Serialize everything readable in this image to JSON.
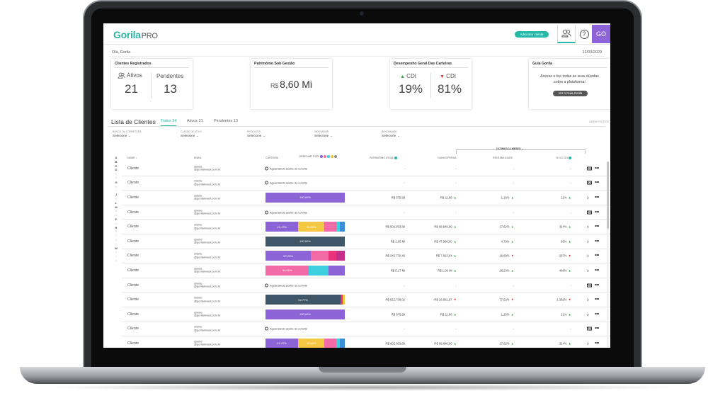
{
  "brand": {
    "logo": "Gorila",
    "logo_suffix": "PRO"
  },
  "header": {
    "add_client_label": "Adicionar cliente",
    "help_icon": "?",
    "user_initials": "GO",
    "accent": "#23b8a8",
    "user_color": "#8c64d8"
  },
  "greeting": "Olá, Gorila",
  "date": "12/03/2020",
  "cards": {
    "clients": {
      "title": "Clientes Registrados",
      "ativos_label": "Ativos",
      "ativos_value": "21",
      "pendentes_label": "Pendentes",
      "pendentes_value": "13"
    },
    "patrimonio": {
      "title": "Patrimônio Sob Gestão",
      "currency": "R$",
      "amount": "8,60 Mi"
    },
    "desempenho": {
      "title": "Desempenho Geral Das Carteiras",
      "up_label": "CDI",
      "up_value": "19%",
      "down_label": "CDI",
      "down_value": "81%",
      "up_arrow": "▲",
      "down_arrow": "▼"
    },
    "guia": {
      "title": "Guia Gorila",
      "text": "Acesse e tire todas as suas dúvidas sobre a plataforma!",
      "button": "Ver o Guia Gorila"
    }
  },
  "list": {
    "title": "Lista de Clientes",
    "tabs": {
      "todos_label": "Todos",
      "todos_count": "34",
      "ativos_label": "Ativos",
      "ativos_count": "21",
      "pendentes_label": "Pendentes",
      "pendentes_count": "13"
    },
    "clear_filters": "LIMPAR FILTROS"
  },
  "filters": [
    {
      "label": "BANCO OU CORRETORA",
      "value": "Selecione"
    },
    {
      "label": "CLASSE DE ATIVO",
      "value": "Selecione"
    },
    {
      "label": "PRODUTOS",
      "value": "Selecione"
    },
    {
      "label": "INDEXADOR",
      "value": "Selecione"
    },
    {
      "label": "BENCHMARK",
      "value": "Selecione"
    }
  ],
  "table": {
    "period": "ÚLTIMOS 12 MESES",
    "headers": {
      "nome": "NOME",
      "email": "EMAIL",
      "carteira": "CARTEIRA",
      "ordenar": "ORDENAR POR:",
      "patrimonio": "PATRIMÔNIO ATUAL",
      "ganho": "GANHO/PERDA",
      "rentabilidade": "RENTABILIDADE",
      "cdi": "% DO CDI"
    },
    "sort_dots": [
      "#8c64d8",
      "#f26ba6",
      "#3fd0e0",
      "#f5c842",
      "#8d8d8d"
    ]
  },
  "alphabet": [
    {
      "l": "A",
      "on": true
    },
    {
      "l": "B",
      "on": true
    },
    {
      "l": "C",
      "on": true
    },
    {
      "l": "D",
      "on": true
    },
    {
      "l": "E",
      "on": false
    },
    {
      "l": "F",
      "on": false
    },
    {
      "l": "G",
      "on": true
    },
    {
      "l": "H",
      "on": false
    },
    {
      "l": "I",
      "on": false
    },
    {
      "l": "J",
      "on": true
    },
    {
      "l": "K",
      "on": false
    },
    {
      "l": "L",
      "on": true
    },
    {
      "l": "M",
      "on": true
    },
    {
      "l": "N",
      "on": false
    },
    {
      "l": "O",
      "on": false
    },
    {
      "l": "P",
      "on": true
    },
    {
      "l": "Q",
      "on": false
    },
    {
      "l": "R",
      "on": true
    },
    {
      "l": "S",
      "on": false
    },
    {
      "l": "T",
      "on": false
    },
    {
      "l": "U",
      "on": false
    },
    {
      "l": "V",
      "on": false
    },
    {
      "l": "W",
      "on": true
    },
    {
      "l": "X",
      "on": false
    },
    {
      "l": "Y",
      "on": false
    },
    {
      "l": "Z",
      "on": false
    }
  ],
  "pending_label": "Aguardando aceite do convite",
  "rows": [
    {
      "name": "Cliente",
      "email1": "cliente",
      "email2": "@gorilainvest.com.br",
      "pending": true,
      "patrimonio": "-",
      "ganho": "-",
      "ganho_dir": "",
      "rent": "-",
      "rent_dir": "",
      "cdi": "-",
      "cdi_dir": "",
      "action": "mail"
    },
    {
      "name": "Cliente",
      "email1": "cliente",
      "email2": "@gorilainvest.com.br",
      "pending": true,
      "patrimonio": "-",
      "ganho": "-",
      "ganho_dir": "",
      "rent": "-",
      "rent_dir": "",
      "cdi": "-",
      "cdi_dir": "",
      "action": "mail"
    },
    {
      "name": "Cliente",
      "email1": "cliente",
      "email2": "@gorilainvest.com.br",
      "pending": false,
      "segments": [
        {
          "pct": 100,
          "color": "#8c64d8",
          "label": "100,00%"
        }
      ],
      "patrimonio": "R$ 975,99",
      "ganho": "R$ 11,68",
      "ganho_dir": "up",
      "rent": "1,16%",
      "rent_dir": "up",
      "cdi": "21%",
      "cdi_dir": "up",
      "action": "chevron"
    },
    {
      "name": "Cliente",
      "email1": "cliente",
      "email2": "@gorilainvest.com.br",
      "pending": true,
      "patrimonio": "-",
      "ganho": "-",
      "ganho_dir": "",
      "rent": "-",
      "rent_dir": "",
      "cdi": "-",
      "cdi_dir": "",
      "action": "mail"
    },
    {
      "name": "Cliente",
      "email1": "cliente",
      "email2": "@gorilainvest.com.br",
      "pending": false,
      "segments": [
        {
          "pct": 41.47,
          "color": "#8c64d8",
          "label": "41,47%"
        },
        {
          "pct": 32.63,
          "color": "#f5c842",
          "label": "32,63%"
        },
        {
          "pct": 15,
          "color": "#f26ba6",
          "label": ""
        },
        {
          "pct": 5,
          "color": "#3fd0e0",
          "label": ""
        },
        {
          "pct": 5.9,
          "color": "#3a8fd6",
          "label": ""
        }
      ],
      "patrimonio": "R$ 602.053,89",
      "ganho": "R$ 68.646,00",
      "ganho_dir": "up",
      "rent": "17,62%",
      "rent_dir": "up",
      "cdi": "314%",
      "cdi_dir": "up",
      "action": "chevron"
    },
    {
      "name": "Cliente",
      "email1": "cliente",
      "email2": "@gorilainvest.com.br",
      "pending": false,
      "segments": [
        {
          "pct": 100,
          "color": "#3e5668",
          "label": "100,00%"
        }
      ],
      "patrimonio": "R$ 1,05 Mi",
      "ganho": "R$ 47.900,00",
      "ganho_dir": "up",
      "rent": "4,79%",
      "rent_dir": "up",
      "cdi": "85%",
      "cdi_dir": "up",
      "action": "chevron"
    },
    {
      "name": "Cliente",
      "email1": "cliente",
      "email2": "@gorilainvest.com.br",
      "pending": false,
      "segments": [
        {
          "pct": 57.29,
          "color": "#8c64d8",
          "label": "57,29%"
        },
        {
          "pct": 22,
          "color": "#f26ba6",
          "label": ""
        },
        {
          "pct": 10,
          "color": "#e8327b",
          "label": ""
        },
        {
          "pct": 10.71,
          "color": "#c42f8a",
          "label": ""
        }
      ],
      "patrimonio": "R$ 245.779,46",
      "ganho": "R$ 7.813,04",
      "ganho_dir": "up",
      "rent": "-16,69%",
      "rent_dir": "down",
      "cdi": "-297%",
      "cdi_dir": "down",
      "action": "chevron"
    },
    {
      "name": "Cliente",
      "email1": "cliente",
      "email2": "@gorilainvest.com.br",
      "pending": false,
      "segments": [
        {
          "pct": 54.65,
          "color": "#f26ba6",
          "label": "54,65%"
        },
        {
          "pct": 25,
          "color": "#3fd0e0",
          "label": ""
        },
        {
          "pct": 20.35,
          "color": "#8c64d8",
          "label": ""
        }
      ],
      "patrimonio": "R$ 5,17 Mi",
      "ganho": "R$ 1,03 Mi",
      "ganho_dir": "up",
      "rent": "26,23%",
      "rent_dir": "up",
      "cdi": "468%",
      "cdi_dir": "up",
      "action": "chevron"
    },
    {
      "name": "Cliente",
      "email1": "cliente",
      "email2": "@gorilainvest.com.br",
      "pending": true,
      "patrimonio": "-",
      "ganho": "-",
      "ganho_dir": "",
      "rent": "-",
      "rent_dir": "",
      "cdi": "-",
      "cdi_dir": "",
      "action": "mail"
    },
    {
      "name": "Cliente",
      "email1": "cliente",
      "email2": "@gorilainvest.com.br",
      "pending": false,
      "segments": [
        {
          "pct": 94.77,
          "color": "#3e5668",
          "label": "94,77%"
        },
        {
          "pct": 2.5,
          "color": "#e8327b",
          "label": ""
        },
        {
          "pct": 2.73,
          "color": "#f5c842",
          "label": ""
        }
      ],
      "patrimonio": "R$ 612.738,02",
      "ganho": "-R$ 18.891,97",
      "ganho_dir": "down",
      "rent": "-77,52%",
      "rent_dir": "down",
      "cdi": "-1.382%",
      "cdi_dir": "down",
      "action": "chevron"
    },
    {
      "name": "Cliente",
      "email1": "cliente",
      "email2": "@gorilainvest.com.br",
      "pending": false,
      "segments": [
        {
          "pct": 100,
          "color": "#8c64d8",
          "label": "100,00%"
        }
      ],
      "patrimonio": "R$ 975,99",
      "ganho": "R$ 11,68",
      "ganho_dir": "up",
      "rent": "1,16%",
      "rent_dir": "up",
      "cdi": "21%",
      "cdi_dir": "up",
      "action": "chevron"
    },
    {
      "name": "Cliente",
      "email1": "cliente",
      "email2": "@gorilainvest.com.br",
      "pending": true,
      "patrimonio": "-",
      "ganho": "-",
      "ganho_dir": "",
      "rent": "-",
      "rent_dir": "",
      "cdi": "-",
      "cdi_dir": "",
      "action": "mail"
    },
    {
      "name": "Cliente",
      "email1": "cliente",
      "email2": "@gorilainvest.com.br",
      "pending": false,
      "segments": [
        {
          "pct": 41.47,
          "color": "#8c64d8",
          "label": "41,47%"
        },
        {
          "pct": 32.63,
          "color": "#f5c842",
          "label": "32,63%"
        },
        {
          "pct": 15,
          "color": "#f26ba6",
          "label": ""
        },
        {
          "pct": 5,
          "color": "#3fd0e0",
          "label": ""
        },
        {
          "pct": 5.9,
          "color": "#3a8fd6",
          "label": ""
        }
      ],
      "patrimonio": "R$ 602.053,89",
      "ganho": "R$ 68.646,00",
      "ganho_dir": "up",
      "rent": "17,62%",
      "rent_dir": "up",
      "cdi": "314%",
      "cdi_dir": "up",
      "action": "chevron"
    }
  ]
}
